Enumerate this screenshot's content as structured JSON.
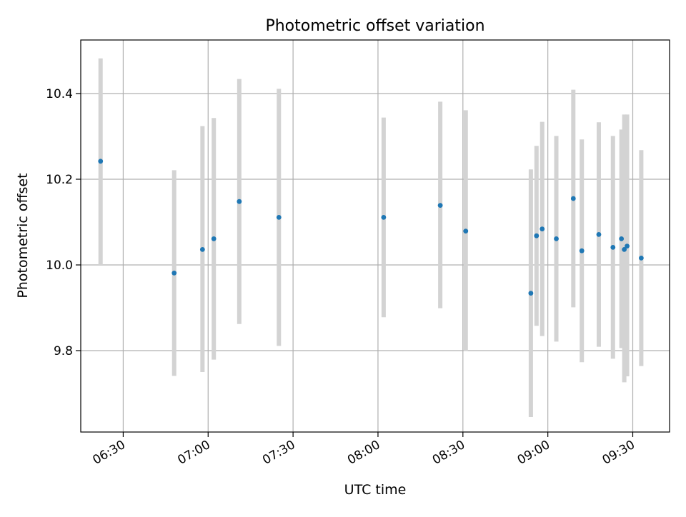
{
  "chart_data": {
    "type": "scatter",
    "title": "Photometric offset variation",
    "xlabel": "UTC time",
    "ylabel": "Photometric offset",
    "xlim": [
      "06:15",
      "09:43"
    ],
    "ylim": [
      9.61,
      10.525
    ],
    "xticks": [
      "06:30",
      "07:00",
      "07:30",
      "08:00",
      "08:30",
      "09:00",
      "09:30"
    ],
    "yticks": [
      9.8,
      10.0,
      10.2,
      10.4
    ],
    "ytick_labels": [
      "9.8",
      "10.0",
      "10.2",
      "10.4"
    ],
    "grid": true,
    "colors": {
      "point": "#1f77b4",
      "errorbar": "#d3d3d3",
      "grid": "#b0b0b0"
    },
    "points": [
      {
        "x": "06:22",
        "y": 10.242,
        "ylow": 10.0,
        "yhigh": 10.482
      },
      {
        "x": "06:48",
        "y": 9.981,
        "ylow": 9.741,
        "yhigh": 10.221
      },
      {
        "x": "06:58",
        "y": 10.036,
        "ylow": 9.75,
        "yhigh": 10.324
      },
      {
        "x": "07:02",
        "y": 10.061,
        "ylow": 9.779,
        "yhigh": 10.343
      },
      {
        "x": "07:11",
        "y": 10.148,
        "ylow": 9.862,
        "yhigh": 10.434
      },
      {
        "x": "07:25",
        "y": 10.111,
        "ylow": 9.811,
        "yhigh": 10.411
      },
      {
        "x": "08:02",
        "y": 10.111,
        "ylow": 9.878,
        "yhigh": 10.344
      },
      {
        "x": "08:22",
        "y": 10.139,
        "ylow": 9.899,
        "yhigh": 10.381
      },
      {
        "x": "08:31",
        "y": 10.079,
        "ylow": 9.799,
        "yhigh": 10.361
      },
      {
        "x": "08:54",
        "y": 9.934,
        "ylow": 9.645,
        "yhigh": 10.223
      },
      {
        "x": "08:56",
        "y": 10.068,
        "ylow": 9.858,
        "yhigh": 10.278
      },
      {
        "x": "08:58",
        "y": 10.084,
        "ylow": 9.834,
        "yhigh": 10.334
      },
      {
        "x": "09:03",
        "y": 10.061,
        "ylow": 9.821,
        "yhigh": 10.301
      },
      {
        "x": "09:09",
        "y": 10.155,
        "ylow": 9.901,
        "yhigh": 10.409
      },
      {
        "x": "09:12",
        "y": 10.033,
        "ylow": 9.773,
        "yhigh": 10.293
      },
      {
        "x": "09:18",
        "y": 10.071,
        "ylow": 9.809,
        "yhigh": 10.333
      },
      {
        "x": "09:23",
        "y": 10.041,
        "ylow": 9.781,
        "yhigh": 10.301
      },
      {
        "x": "09:26",
        "y": 10.061,
        "ylow": 9.806,
        "yhigh": 10.316
      },
      {
        "x": "09:27",
        "y": 10.036,
        "ylow": 9.726,
        "yhigh": 10.351
      },
      {
        "x": "09:28",
        "y": 10.044,
        "ylow": 9.74,
        "yhigh": 10.351
      },
      {
        "x": "09:33",
        "y": 10.016,
        "ylow": 9.764,
        "yhigh": 10.268
      }
    ]
  }
}
